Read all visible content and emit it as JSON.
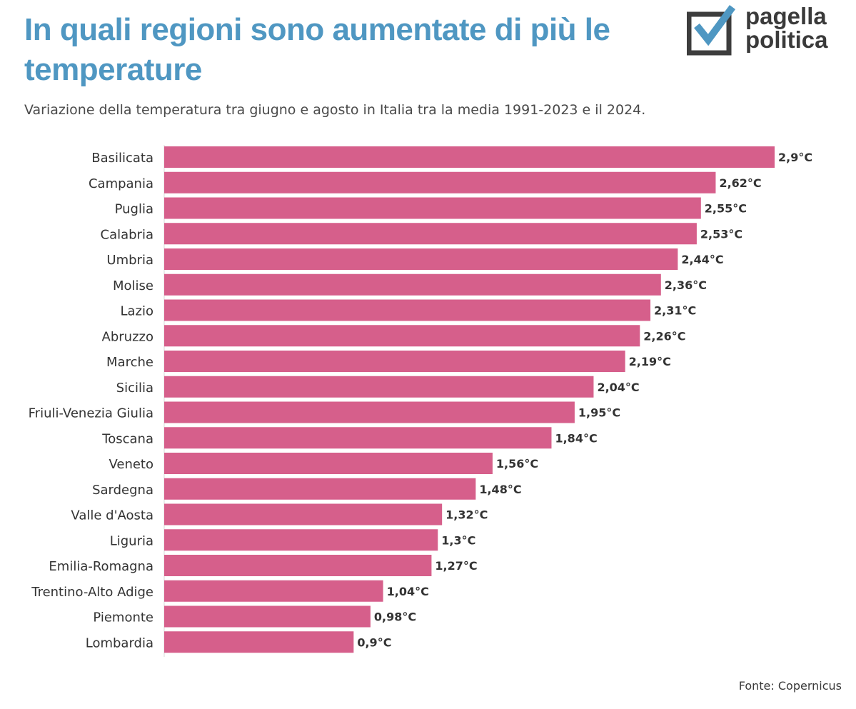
{
  "header": {
    "title": "In quali regioni sono aumentate di più le temperature",
    "subtitle": "Variazione della temperatura tra giugno e agosto in Italia tra la media 1991-2023 e il 2024."
  },
  "logo": {
    "line1": "pagella",
    "line2": "politica",
    "icon": "checkbox-check-icon"
  },
  "footer": {
    "source": "Fonte: Copernicus"
  },
  "colors": {
    "bar": "#d65f8b",
    "title": "#4f97c2",
    "logo_check": "#4f97c2",
    "logo_box": "#3d3d3d"
  },
  "chart_data": {
    "type": "bar",
    "orientation": "horizontal",
    "categories": [
      "Basilicata",
      "Campania",
      "Puglia",
      "Calabria",
      "Umbria",
      "Molise",
      "Lazio",
      "Abruzzo",
      "Marche",
      "Sicilia",
      "Friuli-Venezia Giulia",
      "Toscana",
      "Veneto",
      "Sardegna",
      "Valle d'Aosta",
      "Liguria",
      "Emilia-Romagna",
      "Trentino-Alto Adige",
      "Piemonte",
      "Lombardia"
    ],
    "values": [
      2.9,
      2.62,
      2.55,
      2.53,
      2.44,
      2.36,
      2.31,
      2.26,
      2.19,
      2.04,
      1.95,
      1.84,
      1.56,
      1.48,
      1.32,
      1.3,
      1.27,
      1.04,
      0.98,
      0.9
    ],
    "value_labels": [
      "2,9°C",
      "2,62°C",
      "2,55°C",
      "2,53°C",
      "2,44°C",
      "2,36°C",
      "2,31°C",
      "2,26°C",
      "2,19°C",
      "2,04°C",
      "1,95°C",
      "1,84°C",
      "1,56°C",
      "1,48°C",
      "1,32°C",
      "1,3°C",
      "1,27°C",
      "1,04°C",
      "0,98°C",
      "0,9°C"
    ],
    "xlim": [
      0,
      2.9
    ],
    "grid": false,
    "legend": "none"
  }
}
